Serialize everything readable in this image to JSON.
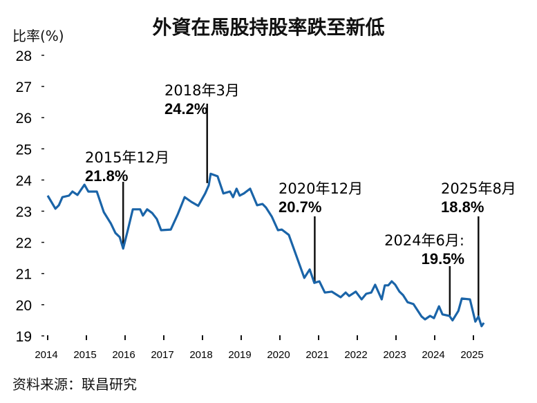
{
  "chart_data": {
    "type": "line",
    "title": "外資在馬股持股率跌至新低",
    "ylabel": "比率(%)",
    "xlabel": "",
    "ylim": [
      19,
      28
    ],
    "xlim": [
      2014,
      2025.4
    ],
    "yticks": [
      19,
      20,
      21,
      22,
      23,
      24,
      25,
      26,
      27,
      28
    ],
    "xticks": [
      2014,
      2015,
      2016,
      2017,
      2018,
      2019,
      2020,
      2021,
      2022,
      2023,
      2024,
      2025
    ],
    "grid": false,
    "line_color": "#1a64a8",
    "series": [
      {
        "x": [
          2014.0,
          2014.2,
          2014.29,
          2014.38,
          2014.55,
          2014.64,
          2014.77,
          2014.95,
          2015.05,
          2015.27,
          2015.45,
          2015.63,
          2015.75,
          2015.86,
          2015.95,
          2016.07,
          2016.2,
          2016.39,
          2016.46,
          2016.57,
          2016.7,
          2016.82,
          2016.93,
          2017.18,
          2017.36,
          2017.54,
          2017.71,
          2017.89,
          2018.07,
          2018.16,
          2018.21,
          2018.39,
          2018.54,
          2018.71,
          2018.79,
          2018.88,
          2018.96,
          2019.07,
          2019.23,
          2019.41,
          2019.55,
          2019.64,
          2019.79,
          2019.95,
          2020.05,
          2020.23,
          2020.63,
          2020.77,
          2020.89,
          2021.02,
          2021.16,
          2021.34,
          2021.57,
          2021.7,
          2021.79,
          2021.96,
          2022.11,
          2022.23,
          2022.36,
          2022.46,
          2022.63,
          2022.71,
          2022.8,
          2022.89,
          2022.98,
          2023.09,
          2023.18,
          2023.3,
          2023.45,
          2023.66,
          2023.75,
          2023.88,
          2023.98,
          2024.11,
          2024.2,
          2024.38,
          2024.46,
          2024.61,
          2024.7,
          2024.91,
          2025.05,
          2025.13,
          2025.21,
          2025.27
        ],
        "y": [
          23.5,
          23.08,
          23.19,
          23.45,
          23.5,
          23.63,
          23.52,
          23.85,
          23.63,
          23.63,
          22.97,
          22.61,
          22.3,
          22.17,
          21.8,
          22.39,
          23.06,
          23.06,
          22.86,
          23.06,
          22.94,
          22.75,
          22.39,
          22.41,
          22.9,
          23.45,
          23.3,
          23.17,
          23.57,
          23.83,
          24.2,
          24.12,
          23.57,
          23.63,
          23.45,
          23.72,
          23.5,
          23.57,
          23.72,
          23.19,
          23.23,
          23.12,
          22.83,
          22.39,
          22.41,
          22.24,
          20.86,
          21.13,
          20.7,
          20.75,
          20.39,
          20.42,
          20.24,
          20.39,
          20.28,
          20.42,
          20.17,
          20.35,
          20.39,
          20.64,
          20.17,
          20.62,
          20.62,
          20.75,
          20.64,
          20.42,
          20.31,
          20.08,
          20.02,
          19.62,
          19.53,
          19.64,
          19.57,
          19.95,
          19.69,
          19.64,
          19.5,
          19.8,
          20.2,
          20.17,
          19.46,
          19.62,
          19.31,
          19.42
        ]
      }
    ],
    "annotations": [
      {
        "date": "2015年12月",
        "value": "21.8%",
        "x": 2015.95,
        "y": 21.8
      },
      {
        "date": "2018年3月",
        "value": "24.2%",
        "x": 2018.12,
        "y": 23.9
      },
      {
        "date": "2020年12月",
        "value": "20.7%",
        "x": 2020.9,
        "y": 20.7
      },
      {
        "date": "2024年6月:",
        "value": "19.5%",
        "x": 2024.39,
        "y": 19.62
      },
      {
        "date": "2025年8月",
        "value": "18.8%",
        "x": 2025.13,
        "y": 19.62
      }
    ],
    "source": "资料来源：联昌研究"
  }
}
